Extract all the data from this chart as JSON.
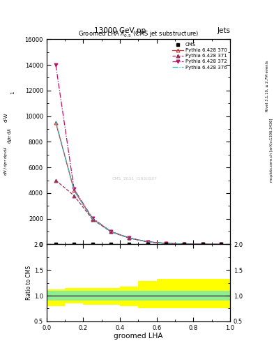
{
  "title_top": "13000 GeV pp",
  "title_right": "Jets",
  "plot_title": "Groomed LHA $\\lambda^{1}_{0.5}$ (CMS jet substructure)",
  "xlabel": "groomed LHA",
  "ylabel_ratio": "Ratio to CMS",
  "right_label1": "Rivet 3.1.10, ≥ 2.7M events",
  "right_label2": "mcplots.cern.ch [arXiv:1306.3436]",
  "watermark": "CMS_2021_I1920187",
  "cms_x": [
    0.05,
    0.15,
    0.25,
    0.35,
    0.45,
    0.55,
    0.65,
    0.75,
    0.85,
    0.95
  ],
  "cms_y": [
    2,
    2,
    2,
    2,
    2,
    2,
    2,
    2,
    2,
    2
  ],
  "py370_x": [
    0.05,
    0.15,
    0.25,
    0.35,
    0.45,
    0.55,
    0.65,
    0.75,
    0.85,
    0.95
  ],
  "py370_y": [
    9500,
    4200,
    2000,
    1000,
    500,
    200,
    80,
    30,
    10,
    3
  ],
  "py371_x": [
    0.05,
    0.15,
    0.25,
    0.35,
    0.45,
    0.55,
    0.65,
    0.75,
    0.85,
    0.95
  ],
  "py371_y": [
    5000,
    3800,
    1950,
    980,
    490,
    200,
    80,
    30,
    10,
    3
  ],
  "py372_x": [
    0.05,
    0.15,
    0.25,
    0.35,
    0.45,
    0.55,
    0.65,
    0.75,
    0.85,
    0.95
  ],
  "py372_y": [
    14000,
    4300,
    2050,
    1010,
    510,
    205,
    82,
    32,
    11,
    3
  ],
  "py376_x": [
    0.05,
    0.15,
    0.25,
    0.35,
    0.45,
    0.55,
    0.65,
    0.75,
    0.85,
    0.95
  ],
  "py376_y": [
    9600,
    4200,
    2000,
    1000,
    500,
    200,
    78,
    30,
    10,
    3
  ],
  "ratio_bins": [
    0.0,
    0.1,
    0.2,
    0.3,
    0.4,
    0.5,
    0.6,
    0.7,
    0.8,
    0.9,
    1.0
  ],
  "ratio_green_lo": [
    0.9,
    0.9,
    0.9,
    0.9,
    0.9,
    0.9,
    0.9,
    0.9,
    0.9,
    0.9
  ],
  "ratio_green_hi": [
    1.1,
    1.1,
    1.1,
    1.1,
    1.1,
    1.1,
    1.1,
    1.1,
    1.1,
    1.1
  ],
  "ratio_yellow_lo": [
    0.8,
    0.85,
    0.82,
    0.82,
    0.8,
    0.75,
    0.75,
    0.75,
    0.75,
    0.75
  ],
  "ratio_yellow_hi": [
    1.12,
    1.15,
    1.15,
    1.15,
    1.18,
    1.28,
    1.32,
    1.32,
    1.32,
    1.32
  ],
  "color_py370": "#cc3333",
  "color_py371": "#993355",
  "color_py372": "#bb1166",
  "color_py376": "#33bbbb",
  "ylim_main": [
    0,
    16000
  ],
  "yticks_main": [
    0,
    2000,
    4000,
    6000,
    8000,
    10000,
    12000,
    14000,
    16000
  ],
  "ylim_ratio": [
    0.5,
    2.0
  ],
  "xlim": [
    0.0,
    1.0
  ],
  "xticks": [
    0.0,
    0.2,
    0.4,
    0.6,
    0.8,
    1.0
  ]
}
